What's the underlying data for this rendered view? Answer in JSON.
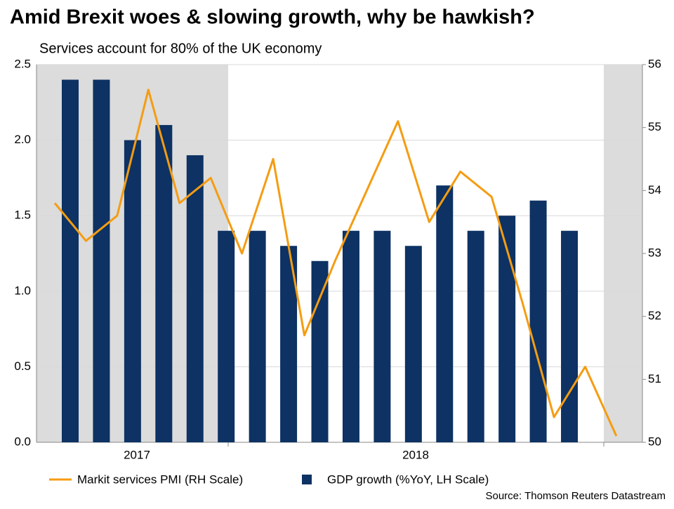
{
  "chart_data": {
    "type": "bar-line",
    "title": "Amid Brexit woes & slowing growth, why be hawkish?",
    "subtitle": "Services account for 80% of the UK economy",
    "categories": [
      null,
      null,
      null,
      null,
      null,
      null,
      null,
      null,
      null,
      null,
      null,
      null,
      null,
      null,
      null,
      null,
      null,
      null,
      null
    ],
    "year_labels": [
      "2017",
      "2018"
    ],
    "series": [
      {
        "name": "Markit services PMI (RH Scale)",
        "color": "#f59c12",
        "kind": "line",
        "axis": "y2",
        "values": [
          53.8,
          53.2,
          53.6,
          55.6,
          53.8,
          54.2,
          53.0,
          54.5,
          51.7,
          52.9,
          54.0,
          55.1,
          53.5,
          54.3,
          53.9,
          52.2,
          50.4,
          51.2,
          50.1
        ]
      },
      {
        "name": "GDP growth (%YoY, LH Scale)",
        "color": "#0d3263",
        "kind": "bar",
        "values": [
          2.4,
          2.4,
          2.0,
          2.1,
          1.9,
          1.4,
          1.4,
          1.3,
          1.2,
          1.4,
          1.4,
          1.3,
          1.7,
          1.4,
          1.5,
          1.6,
          1.4,
          null,
          null
        ]
      }
    ],
    "ylim": [
      0,
      2.5
    ],
    "yticks": [
      {
        "value": 0,
        "label": "0.0"
      },
      0.5,
      {
        "value": 1,
        "label": "1.0"
      },
      1.5,
      {
        "value": 2,
        "label": "2.0"
      },
      2.5
    ],
    "y2lim": [
      50,
      56
    ],
    "y2ticks": [
      50,
      51,
      52,
      53,
      54,
      55,
      56
    ],
    "grid": true,
    "source": "Source: Thomson Reuters Datastream"
  }
}
